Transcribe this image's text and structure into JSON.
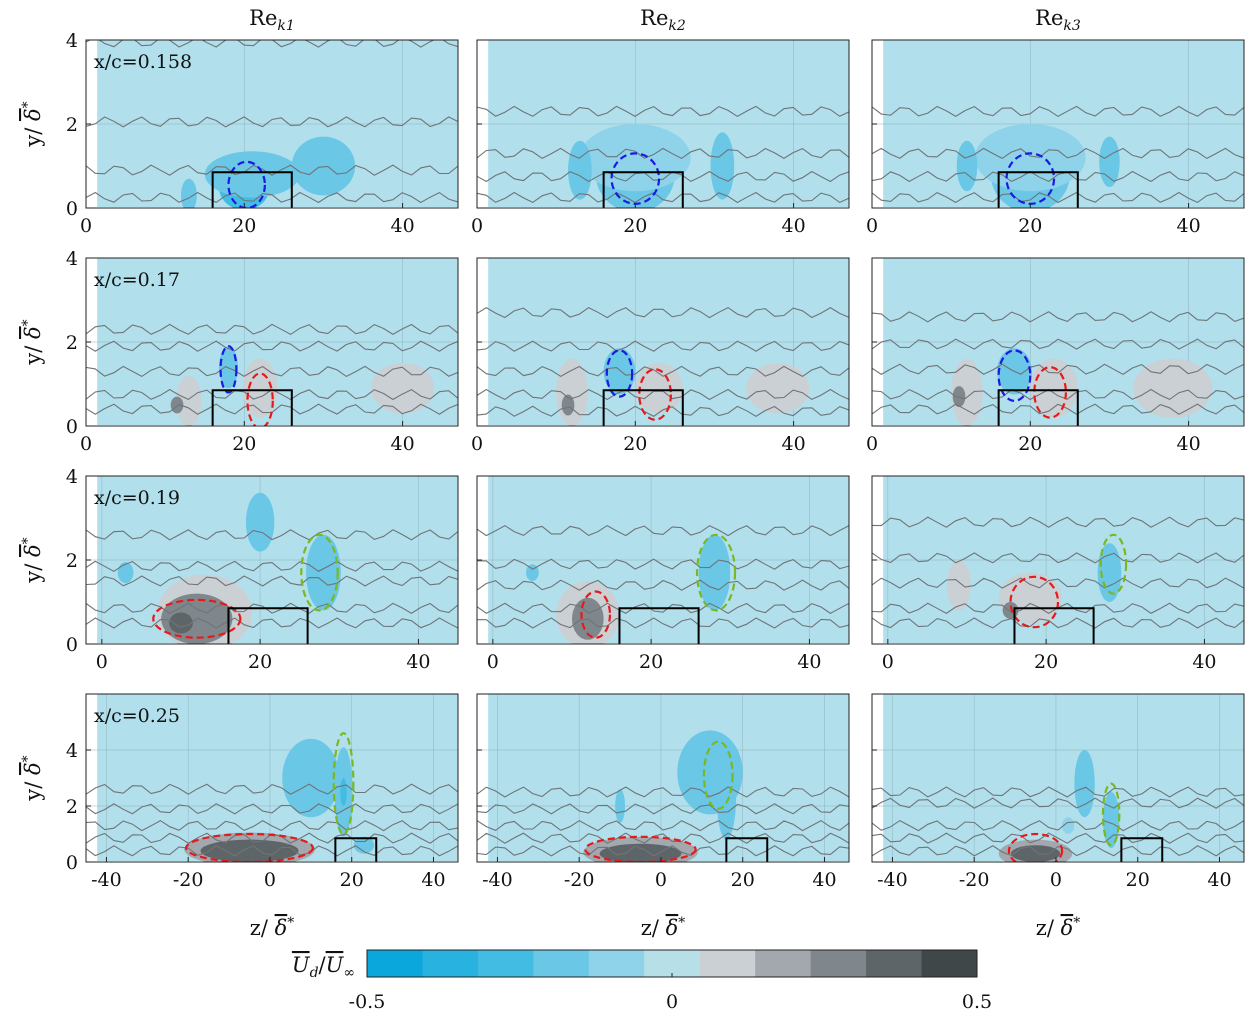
{
  "column_titles": [
    {
      "base": "Re",
      "sub": "k1"
    },
    {
      "base": "Re",
      "sub": "k2"
    },
    {
      "base": "Re",
      "sub": "k3"
    }
  ],
  "row_labels": [
    "x/c=0.158",
    "x/c=0.17",
    "x/c=0.19",
    "x/c=0.25"
  ],
  "ylabel": {
    "pre": "y/ ",
    "sym": "δ",
    "sup": "*"
  },
  "xlabel": {
    "pre": "z/ ",
    "sym": "δ",
    "sup": "*"
  },
  "colorbar": {
    "label": {
      "num": "U",
      "num_sub": "d",
      "den": "U",
      "den_sub": "∞"
    },
    "tick_labels": [
      "-0.5",
      "0",
      "0.5"
    ],
    "ticks": [
      -0.5,
      0,
      0.5
    ],
    "range": [
      -0.5,
      0.5
    ],
    "colors": [
      "#0aa7dc",
      "#27b2e0",
      "#43bce3",
      "#6ac7e6",
      "#8fd3ea",
      "#b6dfe8",
      "#cbd0d4",
      "#a2a8ad",
      "#7f878c",
      "#5e6569",
      "#3f4748"
    ]
  },
  "background_color": "#b1e0ec",
  "roughness_box": {
    "z": [
      16,
      26
    ],
    "y": [
      0,
      0.85
    ]
  },
  "chart_data": {
    "type": "contour",
    "variable": "U_d / U_inf",
    "rows": [
      {
        "label": "x/c=0.158",
        "xlim": [
          0,
          47
        ],
        "ylim": [
          0,
          4
        ],
        "xticks": [
          0,
          20,
          40
        ],
        "yticks": [
          0,
          2,
          4
        ]
      },
      {
        "label": "x/c=0.17",
        "xlim": [
          0,
          47
        ],
        "ylim": [
          0,
          4
        ],
        "xticks": [
          0,
          20,
          40
        ],
        "yticks": [
          0,
          2,
          4
        ]
      },
      {
        "label": "x/c=0.19",
        "xlim": [
          -2,
          45
        ],
        "ylim": [
          0,
          4
        ],
        "xticks": [
          0,
          20,
          40
        ],
        "yticks": [
          0,
          2,
          4
        ]
      },
      {
        "label": "x/c=0.25",
        "xlim": [
          -45,
          46
        ],
        "ylim": [
          0,
          6
        ],
        "xticks": [
          -40,
          -20,
          0,
          20,
          40
        ],
        "yticks": [
          0,
          2,
          4
        ]
      }
    ],
    "panels": [
      {
        "row": 0,
        "col": 0,
        "blobs": [
          {
            "z": 20,
            "y": 0.5,
            "rz": 3.2,
            "ry": 0.55,
            "v": -0.35
          },
          {
            "z": 21,
            "y": 0.8,
            "rz": 6,
            "ry": 0.55,
            "v": -0.18
          },
          {
            "z": 30,
            "y": 1.0,
            "rz": 4,
            "ry": 0.7,
            "v": -0.16
          },
          {
            "z": 13,
            "y": 0.3,
            "rz": 1,
            "ry": 0.4,
            "v": -0.16
          }
        ],
        "dashed": [
          {
            "color": "#1a1ae6",
            "z": 20.3,
            "y": 0.55,
            "rz": 2.3,
            "ry": 0.55
          }
        ],
        "lines": [
          0.25,
          0.9,
          2.05,
          3.95
        ]
      },
      {
        "row": 0,
        "col": 1,
        "blobs": [
          {
            "z": 20,
            "y": 0.8,
            "rz": 2.8,
            "ry": 0.45,
            "v": -0.38
          },
          {
            "z": 20,
            "y": 0.8,
            "rz": 5,
            "ry": 0.9,
            "v": -0.2
          },
          {
            "z": 20,
            "y": 1.2,
            "rz": 7,
            "ry": 0.8,
            "v": -0.14
          },
          {
            "z": 31,
            "y": 1.0,
            "rz": 1.5,
            "ry": 0.8,
            "v": -0.16
          },
          {
            "z": 13,
            "y": 0.9,
            "rz": 1.5,
            "ry": 0.7,
            "v": -0.16
          }
        ],
        "dashed": [
          {
            "color": "#1a1ae6",
            "z": 20,
            "y": 0.7,
            "rz": 3,
            "ry": 0.6
          }
        ],
        "lines": [
          0.25,
          0.75,
          1.3,
          2.3
        ]
      },
      {
        "row": 0,
        "col": 2,
        "blobs": [
          {
            "z": 20,
            "y": 0.8,
            "rz": 2.8,
            "ry": 0.45,
            "v": -0.38
          },
          {
            "z": 20,
            "y": 0.8,
            "rz": 5,
            "ry": 0.9,
            "v": -0.2
          },
          {
            "z": 20,
            "y": 1.2,
            "rz": 7,
            "ry": 0.8,
            "v": -0.14
          },
          {
            "z": 30,
            "y": 1.1,
            "rz": 1.3,
            "ry": 0.6,
            "v": -0.16
          },
          {
            "z": 12,
            "y": 1.0,
            "rz": 1.3,
            "ry": 0.6,
            "v": -0.16
          }
        ],
        "dashed": [
          {
            "color": "#1a1ae6",
            "z": 20,
            "y": 0.7,
            "rz": 3,
            "ry": 0.6
          }
        ],
        "lines": [
          0.25,
          0.75,
          1.3,
          2.3
        ]
      },
      {
        "row": 1,
        "col": 0,
        "blobs": [
          {
            "z": 18,
            "y": 1.4,
            "rz": 1.2,
            "ry": 0.5,
            "v": -0.22
          },
          {
            "z": 40,
            "y": 0.9,
            "rz": 4,
            "ry": 0.6,
            "v": 0.12
          },
          {
            "z": 22,
            "y": 0.9,
            "rz": 2.2,
            "ry": 0.7,
            "v": 0.1
          },
          {
            "z": 13,
            "y": 0.6,
            "rz": 1.6,
            "ry": 0.6,
            "v": 0.12
          },
          {
            "z": 11.5,
            "y": 0.5,
            "rz": 0.8,
            "ry": 0.2,
            "v": 0.3
          }
        ],
        "dashed": [
          {
            "color": "#1a1ae6",
            "z": 18,
            "y": 1.35,
            "rz": 1.0,
            "ry": 0.55
          },
          {
            "color": "#e61a1a",
            "z": 22,
            "y": 0.6,
            "rz": 1.6,
            "ry": 0.65
          }
        ],
        "lines": [
          0.4,
          0.75,
          1.3,
          1.9,
          2.3
        ]
      },
      {
        "row": 1,
        "col": 1,
        "blobs": [
          {
            "z": 18,
            "y": 1.3,
            "rz": 2,
            "ry": 0.55,
            "v": -0.22
          },
          {
            "z": 38,
            "y": 0.9,
            "rz": 4,
            "ry": 0.6,
            "v": 0.12
          },
          {
            "z": 23,
            "y": 0.9,
            "rz": 3,
            "ry": 0.6,
            "v": 0.1
          },
          {
            "z": 12,
            "y": 0.8,
            "rz": 2,
            "ry": 0.8,
            "v": 0.12
          },
          {
            "z": 11.5,
            "y": 0.5,
            "rz": 0.8,
            "ry": 0.25,
            "v": 0.3
          }
        ],
        "dashed": [
          {
            "color": "#1a1ae6",
            "z": 18,
            "y": 1.25,
            "rz": 1.6,
            "ry": 0.55
          },
          {
            "color": "#e61a1a",
            "z": 22.5,
            "y": 0.75,
            "rz": 2.0,
            "ry": 0.6
          }
        ],
        "lines": [
          0.35,
          0.75,
          1.3,
          1.9,
          2.7
        ]
      },
      {
        "row": 1,
        "col": 2,
        "blobs": [
          {
            "z": 18,
            "y": 1.3,
            "rz": 2.2,
            "ry": 0.55,
            "v": -0.22
          },
          {
            "z": 38,
            "y": 0.9,
            "rz": 5,
            "ry": 0.7,
            "v": 0.12
          },
          {
            "z": 23,
            "y": 0.9,
            "rz": 3,
            "ry": 0.7,
            "v": 0.1
          },
          {
            "z": 12,
            "y": 0.8,
            "rz": 2,
            "ry": 0.8,
            "v": 0.12
          },
          {
            "z": 11,
            "y": 0.7,
            "rz": 0.8,
            "ry": 0.25,
            "v": 0.3
          }
        ],
        "dashed": [
          {
            "color": "#1a1ae6",
            "z": 18,
            "y": 1.2,
            "rz": 2.0,
            "ry": 0.6
          },
          {
            "color": "#e61a1a",
            "z": 22.5,
            "y": 0.8,
            "rz": 2.0,
            "ry": 0.6
          }
        ],
        "lines": [
          0.4,
          0.75,
          1.35,
          1.95,
          2.6
        ]
      },
      {
        "row": 2,
        "col": 0,
        "blobs": [
          {
            "z": 13,
            "y": 0.75,
            "rz": 6,
            "ry": 0.9,
            "v": 0.1
          },
          {
            "z": 12,
            "y": 0.6,
            "rz": 4.5,
            "ry": 0.6,
            "v": 0.3
          },
          {
            "z": 10,
            "y": 0.5,
            "rz": 1.5,
            "ry": 0.25,
            "v": 0.4
          },
          {
            "z": 28,
            "y": 1.7,
            "rz": 2.2,
            "ry": 0.9,
            "v": -0.16
          },
          {
            "z": 20,
            "y": 2.9,
            "rz": 1.8,
            "ry": 0.7,
            "v": -0.2
          },
          {
            "z": 3,
            "y": 1.7,
            "rz": 1,
            "ry": 0.25,
            "v": -0.2
          }
        ],
        "dashed": [
          {
            "color": "#e61a1a",
            "z": 12,
            "y": 0.6,
            "rz": 5.5,
            "ry": 0.45
          },
          {
            "color": "#7ab821",
            "z": 27.5,
            "y": 1.7,
            "rz": 2.3,
            "ry": 0.9
          }
        ],
        "lines": [
          0.5,
          0.85,
          1.5,
          1.85,
          2.6
        ]
      },
      {
        "row": 2,
        "col": 1,
        "blobs": [
          {
            "z": 12,
            "y": 0.7,
            "rz": 4,
            "ry": 0.8,
            "v": 0.1
          },
          {
            "z": 12,
            "y": 0.6,
            "rz": 2,
            "ry": 0.5,
            "v": 0.25
          },
          {
            "z": 28,
            "y": 1.7,
            "rz": 2,
            "ry": 0.9,
            "v": -0.16
          },
          {
            "z": 5,
            "y": 1.7,
            "rz": 0.8,
            "ry": 0.2,
            "v": -0.16
          }
        ],
        "dashed": [
          {
            "color": "#e61a1a",
            "z": 13,
            "y": 0.7,
            "rz": 1.8,
            "ry": 0.55
          },
          {
            "color": "#7ab821",
            "z": 28.2,
            "y": 1.7,
            "rz": 2.4,
            "ry": 0.9
          }
        ],
        "lines": [
          0.5,
          0.85,
          1.4,
          1.9,
          2.7
        ]
      },
      {
        "row": 2,
        "col": 2,
        "blobs": [
          {
            "z": 18,
            "y": 1.1,
            "rz": 4,
            "ry": 0.6,
            "v": 0.1
          },
          {
            "z": 9,
            "y": 1.4,
            "rz": 1.5,
            "ry": 0.6,
            "v": 0.1
          },
          {
            "z": 28,
            "y": 1.7,
            "rz": 1.5,
            "ry": 0.7,
            "v": -0.16
          },
          {
            "z": 15.5,
            "y": 0.8,
            "rz": 1,
            "ry": 0.2,
            "v": 0.3
          }
        ],
        "dashed": [
          {
            "color": "#e61a1a",
            "z": 18.5,
            "y": 1.0,
            "rz": 3.0,
            "ry": 0.6
          },
          {
            "color": "#7ab821",
            "z": 28.5,
            "y": 1.9,
            "rz": 1.6,
            "ry": 0.7
          }
        ],
        "lines": [
          0.5,
          0.85,
          1.45,
          2.05,
          2.9
        ]
      },
      {
        "row": 3,
        "col": 0,
        "blobs": [
          {
            "z": -5,
            "y": 0.45,
            "rz": 16,
            "ry": 0.6,
            "v": 0.15
          },
          {
            "z": -5,
            "y": 0.4,
            "rz": 12,
            "ry": 0.4,
            "v": 0.35
          },
          {
            "z": 10,
            "y": 3,
            "rz": 7,
            "ry": 1.4,
            "v": -0.16
          },
          {
            "z": 18,
            "y": 2.5,
            "rz": 2.2,
            "ry": 1.6,
            "v": -0.2
          },
          {
            "z": 18,
            "y": 2.5,
            "rz": 0.8,
            "ry": 0.5,
            "v": -0.3
          },
          {
            "z": 23,
            "y": 0.6,
            "rz": 2.5,
            "ry": 0.3,
            "v": -0.16
          }
        ],
        "dashed": [
          {
            "color": "#e61a1a",
            "z": -5,
            "y": 0.5,
            "rz": 15.5,
            "ry": 0.5
          },
          {
            "color": "#7ab821",
            "z": 18,
            "y": 2.8,
            "rz": 2.4,
            "ry": 1.8
          }
        ],
        "lines": [
          0.4,
          0.85,
          1.3,
          1.9,
          2.6
        ]
      },
      {
        "row": 3,
        "col": 1,
        "blobs": [
          {
            "z": -5,
            "y": 0.35,
            "rz": 14,
            "ry": 0.55,
            "v": 0.15
          },
          {
            "z": -5,
            "y": 0.3,
            "rz": 10,
            "ry": 0.35,
            "v": 0.35
          },
          {
            "z": 12,
            "y": 3.2,
            "rz": 8,
            "ry": 1.5,
            "v": -0.16
          },
          {
            "z": 16,
            "y": 2.4,
            "rz": 2.4,
            "ry": 1.6,
            "v": -0.2
          },
          {
            "z": -10,
            "y": 2,
            "rz": 1.2,
            "ry": 0.6,
            "v": -0.16
          }
        ],
        "dashed": [
          {
            "color": "#e61a1a",
            "z": -5,
            "y": 0.45,
            "rz": 13.5,
            "ry": 0.45
          },
          {
            "color": "#7ab821",
            "z": 14,
            "y": 3.1,
            "rz": 3.5,
            "ry": 1.2
          }
        ],
        "lines": [
          0.4,
          0.85,
          1.3,
          1.9,
          2.5
        ]
      },
      {
        "row": 3,
        "col": 2,
        "blobs": [
          {
            "z": -5,
            "y": 0.3,
            "rz": 9,
            "ry": 0.5,
            "v": 0.15
          },
          {
            "z": -5,
            "y": 0.3,
            "rz": 6,
            "ry": 0.3,
            "v": 0.35
          },
          {
            "z": 7,
            "y": 2.8,
            "rz": 2.5,
            "ry": 1.2,
            "v": -0.16
          },
          {
            "z": 13.5,
            "y": 1.5,
            "rz": 2,
            "ry": 1,
            "v": -0.16
          },
          {
            "z": 3,
            "y": 1.3,
            "rz": 1.5,
            "ry": 0.3,
            "v": -0.14
          }
        ],
        "dashed": [
          {
            "color": "#e61a1a",
            "z": -5,
            "y": 0.4,
            "rz": 6.5,
            "ry": 0.6
          },
          {
            "color": "#7ab821",
            "z": 13.5,
            "y": 1.7,
            "rz": 2.0,
            "ry": 1.1
          }
        ],
        "lines": [
          0.4,
          0.85,
          1.3,
          2.1,
          2.5
        ]
      }
    ]
  }
}
